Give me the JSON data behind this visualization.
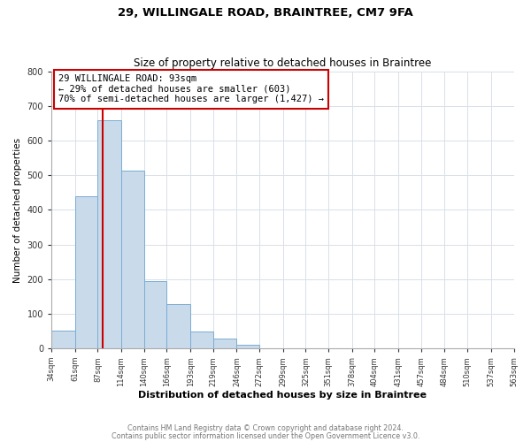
{
  "title1": "29, WILLINGALE ROAD, BRAINTREE, CM7 9FA",
  "title2": "Size of property relative to detached houses in Braintree",
  "xlabel": "Distribution of detached houses by size in Braintree",
  "ylabel": "Number of detached properties",
  "bar_edges": [
    34,
    61,
    87,
    114,
    140,
    166,
    193,
    219,
    246,
    272,
    299,
    325,
    351,
    378,
    404,
    431,
    457,
    484,
    510,
    537,
    563
  ],
  "bar_heights": [
    50,
    440,
    660,
    515,
    193,
    127,
    49,
    27,
    10,
    0,
    0,
    0,
    0,
    0,
    0,
    0,
    0,
    0,
    0,
    0
  ],
  "bar_color": "#c9daea",
  "bar_edge_color": "#7aadd4",
  "vline_x": 93,
  "vline_color": "#cc0000",
  "annotation_line1": "29 WILLINGALE ROAD: 93sqm",
  "annotation_line2": "← 29% of detached houses are smaller (603)",
  "annotation_line3": "70% of semi-detached houses are larger (1,427) →",
  "annotation_box_color": "#ffffff",
  "annotation_box_edge_color": "#cc0000",
  "ylim": [
    0,
    800
  ],
  "yticks": [
    0,
    100,
    200,
    300,
    400,
    500,
    600,
    700,
    800
  ],
  "footer1": "Contains HM Land Registry data © Crown copyright and database right 2024.",
  "footer2": "Contains public sector information licensed under the Open Government Licence v3.0.",
  "bg_color": "#ffffff",
  "plot_bg_color": "#ffffff",
  "grid_color": "#d8e0e8"
}
